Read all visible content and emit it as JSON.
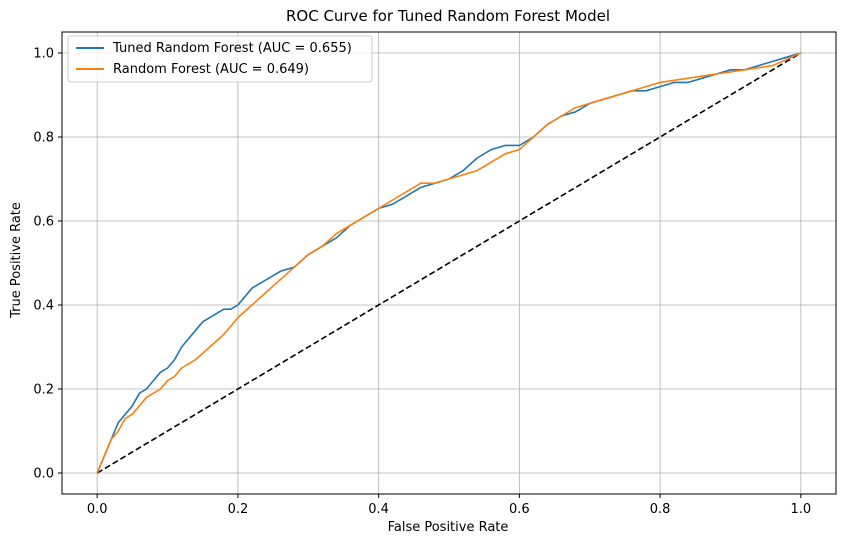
{
  "chart_data": {
    "type": "line",
    "title": "ROC Curve for Tuned Random Forest Model",
    "xlabel": "False Positive Rate",
    "ylabel": "True Positive Rate",
    "xlim": [
      -0.05,
      1.05
    ],
    "ylim": [
      -0.05,
      1.05
    ],
    "xticks": [
      "0.0",
      "0.2",
      "0.4",
      "0.6",
      "0.8",
      "1.0"
    ],
    "yticks": [
      "0.0",
      "0.2",
      "0.4",
      "0.6",
      "0.8",
      "1.0"
    ],
    "grid": true,
    "legend_position": "top-left",
    "series": [
      {
        "name": "Tuned Random Forest (AUC = 0.655)",
        "color": "#1f77b4",
        "style": "solid",
        "x": [
          0.0,
          0.005,
          0.01,
          0.015,
          0.02,
          0.025,
          0.03,
          0.04,
          0.05,
          0.06,
          0.07,
          0.08,
          0.09,
          0.1,
          0.11,
          0.12,
          0.13,
          0.14,
          0.15,
          0.16,
          0.17,
          0.18,
          0.19,
          0.2,
          0.22,
          0.24,
          0.26,
          0.28,
          0.3,
          0.32,
          0.34,
          0.36,
          0.38,
          0.4,
          0.42,
          0.44,
          0.46,
          0.48,
          0.5,
          0.52,
          0.54,
          0.56,
          0.58,
          0.6,
          0.62,
          0.64,
          0.66,
          0.68,
          0.7,
          0.72,
          0.74,
          0.76,
          0.78,
          0.8,
          0.82,
          0.84,
          0.86,
          0.88,
          0.9,
          0.92,
          0.94,
          0.96,
          0.98,
          1.0
        ],
        "y": [
          0.0,
          0.02,
          0.04,
          0.06,
          0.08,
          0.1,
          0.12,
          0.14,
          0.16,
          0.19,
          0.2,
          0.22,
          0.24,
          0.25,
          0.27,
          0.3,
          0.32,
          0.34,
          0.36,
          0.37,
          0.38,
          0.39,
          0.39,
          0.4,
          0.44,
          0.46,
          0.48,
          0.49,
          0.52,
          0.54,
          0.56,
          0.59,
          0.61,
          0.63,
          0.64,
          0.66,
          0.68,
          0.69,
          0.7,
          0.72,
          0.75,
          0.77,
          0.78,
          0.78,
          0.8,
          0.83,
          0.85,
          0.86,
          0.88,
          0.89,
          0.9,
          0.91,
          0.91,
          0.92,
          0.93,
          0.93,
          0.94,
          0.95,
          0.96,
          0.96,
          0.97,
          0.98,
          0.99,
          1.0
        ]
      },
      {
        "name": "Random Forest (AUC = 0.649)",
        "color": "#ff7f0e",
        "style": "solid",
        "x": [
          0.0,
          0.01,
          0.02,
          0.03,
          0.04,
          0.05,
          0.06,
          0.07,
          0.08,
          0.09,
          0.1,
          0.11,
          0.12,
          0.14,
          0.16,
          0.18,
          0.2,
          0.22,
          0.24,
          0.26,
          0.28,
          0.3,
          0.32,
          0.34,
          0.36,
          0.38,
          0.4,
          0.42,
          0.44,
          0.46,
          0.48,
          0.5,
          0.52,
          0.54,
          0.56,
          0.58,
          0.6,
          0.62,
          0.64,
          0.66,
          0.68,
          0.7,
          0.72,
          0.74,
          0.76,
          0.78,
          0.8,
          0.82,
          0.84,
          0.86,
          0.88,
          0.9,
          0.92,
          0.94,
          0.96,
          0.98,
          1.0
        ],
        "y": [
          0.0,
          0.04,
          0.08,
          0.1,
          0.13,
          0.14,
          0.16,
          0.18,
          0.19,
          0.2,
          0.22,
          0.23,
          0.25,
          0.27,
          0.3,
          0.33,
          0.37,
          0.4,
          0.43,
          0.46,
          0.49,
          0.52,
          0.54,
          0.57,
          0.59,
          0.61,
          0.63,
          0.65,
          0.67,
          0.69,
          0.69,
          0.7,
          0.71,
          0.72,
          0.74,
          0.76,
          0.77,
          0.8,
          0.83,
          0.85,
          0.87,
          0.88,
          0.89,
          0.9,
          0.91,
          0.92,
          0.93,
          0.935,
          0.94,
          0.945,
          0.95,
          0.955,
          0.96,
          0.965,
          0.97,
          0.985,
          1.0
        ]
      },
      {
        "name": "",
        "color": "#000000",
        "style": "dashed",
        "x": [
          0.0,
          1.0
        ],
        "y": [
          0.0,
          1.0
        ]
      }
    ]
  }
}
